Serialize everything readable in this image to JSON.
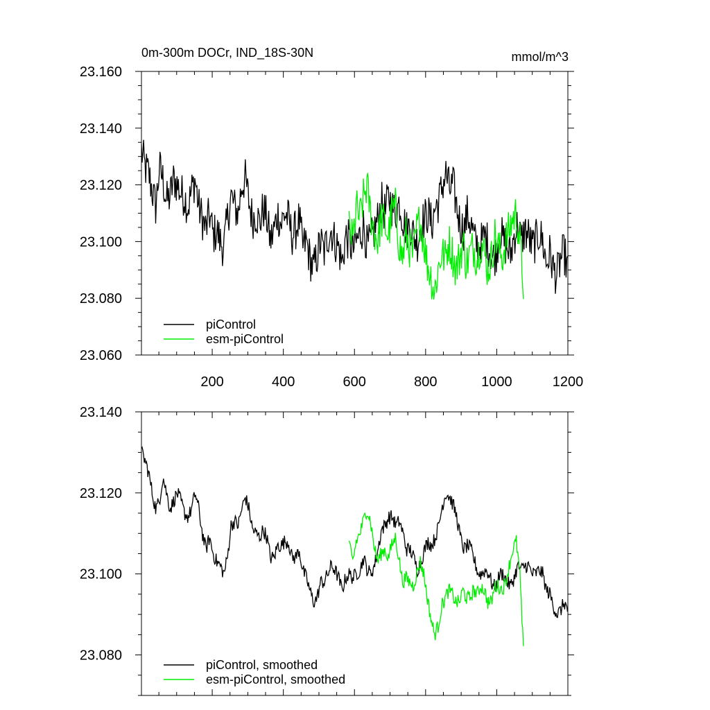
{
  "figure": {
    "title": "0m-300m DOCr, IND_18S-30N",
    "units": "mmol/m^3"
  },
  "chart_data": [
    {
      "type": "line",
      "x_range": [
        1,
        1200
      ],
      "ylim": [
        23.06,
        23.16
      ],
      "x_ticks": [
        200,
        400,
        600,
        800,
        1000,
        1200
      ],
      "x_tick_labels": [
        "200",
        "400",
        "600",
        "800",
        "1000",
        "1200"
      ],
      "y_ticks": [
        23.06,
        23.08,
        23.1,
        23.12,
        23.14,
        23.16
      ],
      "y_tick_labels": [
        "23.060",
        "23.080",
        "23.100",
        "23.120",
        "23.140",
        "23.160"
      ],
      "legend_position": "bottom-left",
      "series": [
        {
          "name": "piControl",
          "color": "#000000",
          "x_start": 1,
          "x_end": 1200,
          "values": [
            23.132,
            23.126,
            23.124,
            23.118,
            23.112,
            23.126,
            23.122,
            23.114,
            23.116,
            23.122,
            23.12,
            23.117,
            23.116,
            23.112,
            23.118,
            23.122,
            23.112,
            23.108,
            23.104,
            23.11,
            23.102,
            23.104,
            23.1,
            23.098,
            23.108,
            23.116,
            23.112,
            23.11,
            23.12,
            23.122,
            23.114,
            23.108,
            23.11,
            23.106,
            23.112,
            23.108,
            23.1,
            23.104,
            23.11,
            23.106,
            23.11,
            23.108,
            23.102,
            23.104,
            23.108,
            23.098,
            23.1,
            23.094,
            23.09,
            23.095,
            23.1,
            23.096,
            23.102,
            23.104,
            23.1,
            23.098,
            23.092,
            23.102,
            23.1,
            23.097,
            23.1,
            23.102,
            23.106,
            23.098,
            23.1,
            23.104,
            23.108,
            23.114,
            23.11,
            23.116,
            23.112,
            23.11,
            23.114,
            23.108,
            23.104,
            23.106,
            23.102,
            23.1,
            23.106,
            23.108,
            23.11,
            23.106,
            23.112,
            23.114,
            23.12,
            23.124,
            23.118,
            23.12,
            23.112,
            23.106,
            23.104,
            23.11,
            23.106,
            23.1,
            23.098,
            23.1,
            23.102,
            23.098,
            23.094,
            23.096,
            23.104,
            23.1,
            23.098,
            23.095,
            23.102,
            23.106,
            23.1,
            23.104,
            23.102,
            23.098,
            23.1,
            23.103,
            23.1,
            23.092,
            23.096,
            23.09,
            23.088,
            23.094,
            23.096,
            23.09
          ]
        },
        {
          "name": "esm-piControl",
          "color": "#00ee00",
          "x_start": 585,
          "x_end": 1075,
          "values": [
            23.105,
            23.1,
            23.112,
            23.108,
            23.115,
            23.12,
            23.11,
            23.104,
            23.1,
            23.108,
            23.106,
            23.102,
            23.11,
            23.112,
            23.1,
            23.094,
            23.102,
            23.098,
            23.095,
            23.104,
            23.108,
            23.1,
            23.092,
            23.088,
            23.082,
            23.09,
            23.096,
            23.094,
            23.1,
            23.096,
            23.09,
            23.094,
            23.1,
            23.092,
            23.096,
            23.098,
            23.094,
            23.1,
            23.096,
            23.09,
            23.094,
            23.102,
            23.098,
            23.094,
            23.1,
            23.104,
            23.108,
            23.11,
            23.1,
            23.085
          ]
        }
      ]
    },
    {
      "type": "line",
      "x_range": [
        1,
        1200
      ],
      "ylim": [
        23.07,
        23.14
      ],
      "x_ticks": [
        200,
        400,
        600,
        800,
        1000,
        1200
      ],
      "y_ticks": [
        23.08,
        23.1,
        23.12,
        23.14
      ],
      "y_tick_labels": [
        "23.080",
        "23.100",
        "23.120",
        "23.140"
      ],
      "legend_position": "bottom-left",
      "series": [
        {
          "name": "piControl, smoothed",
          "color": "#000000",
          "x_start": 1,
          "x_end": 1200,
          "values": [
            23.13,
            23.128,
            23.125,
            23.12,
            23.116,
            23.118,
            23.124,
            23.12,
            23.116,
            23.118,
            23.12,
            23.118,
            23.115,
            23.114,
            23.116,
            23.12,
            23.116,
            23.11,
            23.106,
            23.109,
            23.105,
            23.103,
            23.102,
            23.1,
            23.104,
            23.112,
            23.113,
            23.112,
            23.116,
            23.119,
            23.116,
            23.111,
            23.11,
            23.109,
            23.111,
            23.109,
            23.104,
            23.104,
            23.107,
            23.107,
            23.108,
            23.108,
            23.104,
            23.104,
            23.106,
            23.101,
            23.099,
            23.096,
            23.093,
            23.094,
            23.098,
            23.098,
            23.1,
            23.102,
            23.101,
            23.099,
            23.096,
            23.099,
            23.1,
            23.099,
            23.1,
            23.101,
            23.104,
            23.101,
            23.1,
            23.102,
            23.106,
            23.111,
            23.112,
            23.114,
            23.114,
            23.112,
            23.113,
            23.11,
            23.106,
            23.106,
            23.104,
            23.101,
            23.103,
            23.106,
            23.108,
            23.107,
            23.109,
            23.112,
            23.117,
            23.12,
            23.119,
            23.117,
            23.114,
            23.109,
            23.106,
            23.107,
            23.106,
            23.103,
            23.1,
            23.1,
            23.101,
            23.1,
            23.097,
            23.097,
            23.1,
            23.1,
            23.098,
            23.097,
            23.099,
            23.102,
            23.101,
            23.102,
            23.102,
            23.1,
            23.1,
            23.101,
            23.1,
            23.096,
            23.095,
            23.092,
            23.09,
            23.091,
            23.093,
            23.091
          ]
        },
        {
          "name": "esm-piControl, smoothed",
          "color": "#00ee00",
          "x_start": 585,
          "x_end": 1075,
          "values": [
            23.107,
            23.103,
            23.108,
            23.11,
            23.113,
            23.116,
            23.113,
            23.107,
            23.103,
            23.105,
            23.106,
            23.104,
            23.107,
            23.109,
            23.104,
            23.098,
            23.099,
            23.098,
            23.097,
            23.1,
            23.103,
            23.1,
            23.094,
            23.089,
            23.085,
            23.087,
            23.092,
            23.094,
            23.096,
            23.095,
            23.093,
            23.093,
            23.096,
            23.094,
            23.094,
            23.096,
            23.095,
            23.097,
            23.096,
            23.093,
            23.093,
            23.097,
            23.097,
            23.096,
            23.098,
            23.102,
            23.106,
            23.108,
            23.1,
            23.081
          ]
        }
      ]
    }
  ]
}
